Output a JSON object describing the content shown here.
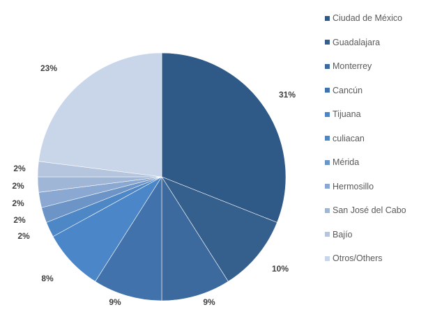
{
  "chart_data": {
    "type": "pie",
    "title": "",
    "categories": [
      "Ciudad de México",
      "Guadalajara",
      "Monterrey",
      "Cancún",
      "Tijuana",
      "culiacan",
      "Mérida",
      "Hermosillo",
      "San José del Cabo",
      "Bajío",
      "Otros/Others"
    ],
    "values": [
      31,
      10,
      9,
      9,
      8,
      2,
      2,
      2,
      2,
      2,
      23
    ],
    "labels": [
      "31%",
      "10%",
      "9%",
      "9%",
      "8%",
      "2%",
      "2%",
      "2%",
      "2%",
      "2%",
      "23%"
    ],
    "colors": [
      "#2f5a87",
      "#355f8c",
      "#3c6a9e",
      "#4172ab",
      "#4b86c8",
      "#4e87c6",
      "#6c94c6",
      "#8aa8d1",
      "#9fb6d6",
      "#b5c5de",
      "#c9d5e8"
    ],
    "legend_position": "right"
  }
}
